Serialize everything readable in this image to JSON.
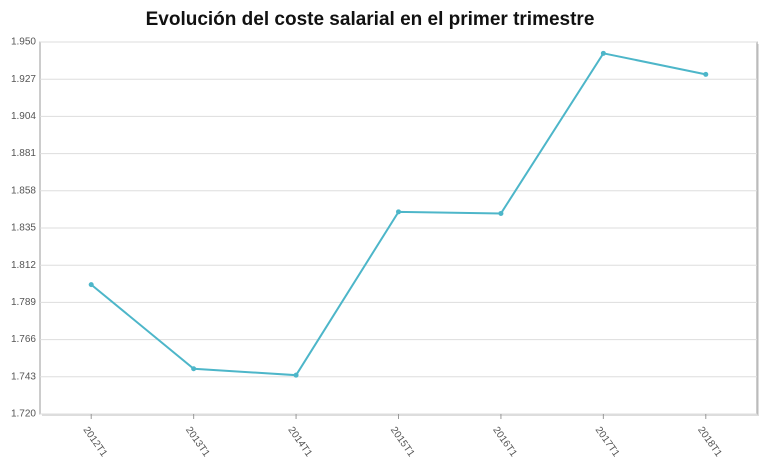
{
  "chart_data": {
    "type": "line",
    "title": "Evolución del coste salarial en el primer trimestre",
    "categories": [
      "2012T1",
      "2013T1",
      "2014T1",
      "2015T1",
      "2016T1",
      "2017T1",
      "2018T1"
    ],
    "series": [
      {
        "name": "Coste salarial",
        "color": "#4db6c9",
        "values": [
          1800,
          1748,
          1744,
          1845,
          1844,
          1943,
          1930
        ]
      }
    ],
    "ylim": [
      1720,
      1950
    ],
    "yticks": [
      {
        "value": 1720,
        "label": "1.720"
      },
      {
        "value": 1743,
        "label": "1.743"
      },
      {
        "value": 1766,
        "label": "1.766"
      },
      {
        "value": 1789,
        "label": "1.789"
      },
      {
        "value": 1812,
        "label": "1.812"
      },
      {
        "value": 1835,
        "label": "1.835"
      },
      {
        "value": 1858,
        "label": "1.858"
      },
      {
        "value": 1881,
        "label": "1.881"
      },
      {
        "value": 1904,
        "label": "1.904"
      },
      {
        "value": 1927,
        "label": "1.927"
      },
      {
        "value": 1950,
        "label": "1.950"
      }
    ],
    "grid": true
  }
}
